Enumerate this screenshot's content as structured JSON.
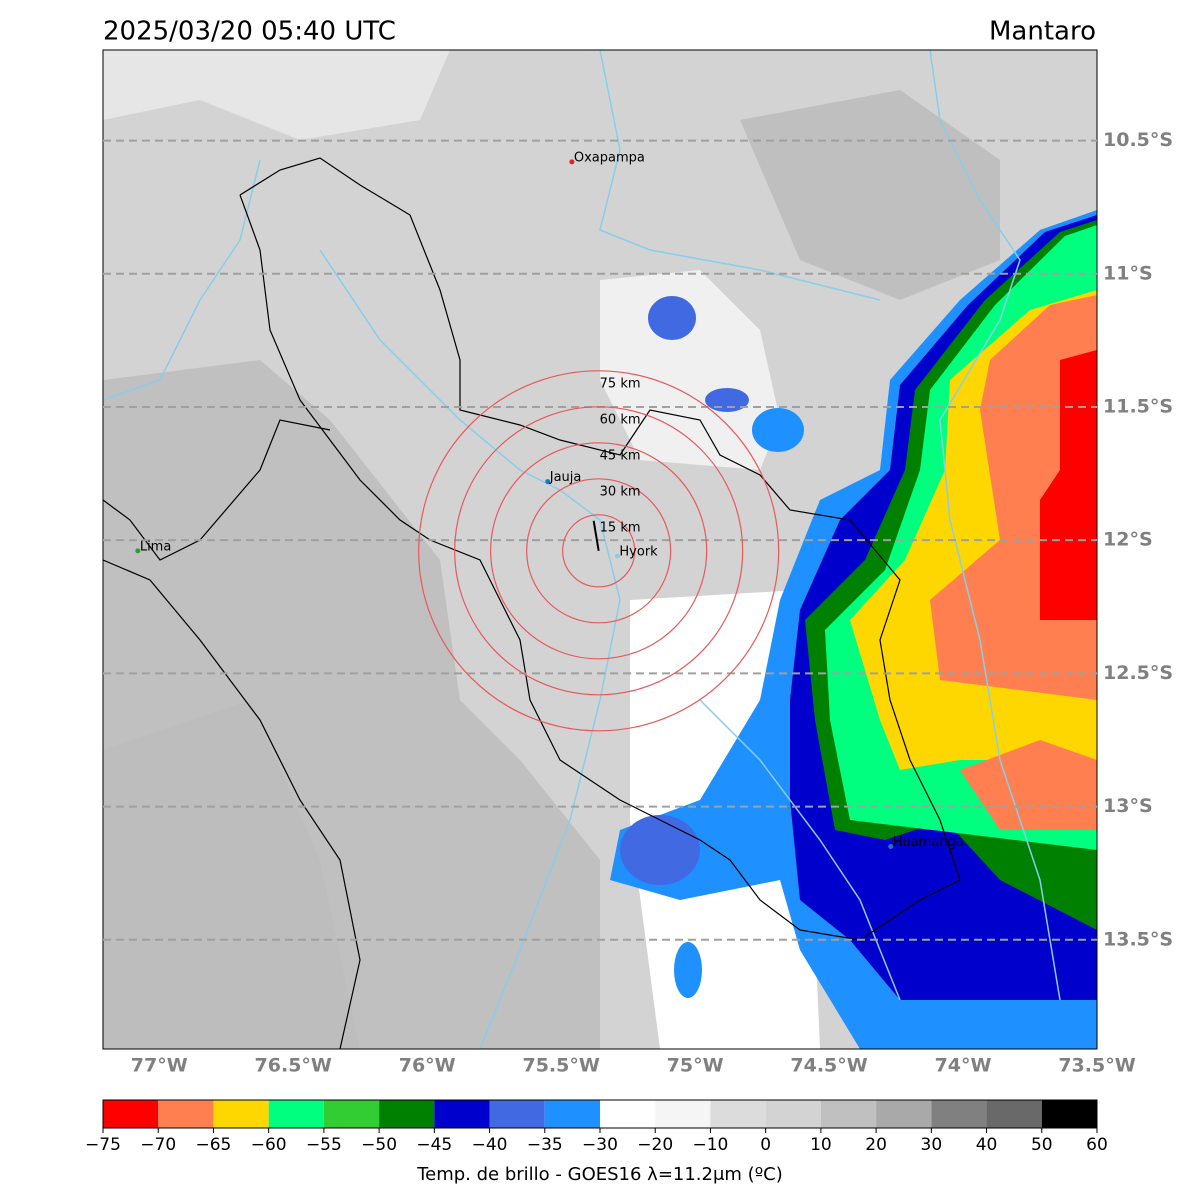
{
  "header": {
    "title": "2025/03/20 05:40 UTC",
    "region": "Mantaro"
  },
  "map": {
    "xlim": [
      -77.21,
      -73.5
    ],
    "ylim": [
      -13.91,
      -10.16
    ],
    "lat_lines": [
      {
        "value": -10.5,
        "label": "10.5°S"
      },
      {
        "value": -11,
        "label": "11°S"
      },
      {
        "value": -11.5,
        "label": "11.5°S"
      },
      {
        "value": -12,
        "label": "12°S"
      },
      {
        "value": -12.5,
        "label": "12.5°S"
      },
      {
        "value": -13,
        "label": "13°S"
      },
      {
        "value": -13.5,
        "label": "13.5°S"
      }
    ],
    "lon_ticks": [
      {
        "value": -77,
        "label": "77°W"
      },
      {
        "value": -76.5,
        "label": "76.5°W"
      },
      {
        "value": -76,
        "label": "76°W"
      },
      {
        "value": -75.5,
        "label": "75.5°W"
      },
      {
        "value": -75,
        "label": "75°W"
      },
      {
        "value": -74.5,
        "label": "74.5°W"
      },
      {
        "value": -74,
        "label": "74°W"
      },
      {
        "value": -73.5,
        "label": "73.5°W"
      }
    ],
    "cities": [
      {
        "name": "Oxapampa",
        "lon": -75.46,
        "lat": -10.58,
        "color": "#d62728"
      },
      {
        "name": "Jauja",
        "lon": -75.55,
        "lat": -11.78,
        "color": "#1f77b4"
      },
      {
        "name": "Lima",
        "lon": -77.08,
        "lat": -12.04,
        "color": "#2ca02c"
      },
      {
        "name": "Hyork",
        "lon": -75.29,
        "lat": -12.06,
        "color": "#87ceeb"
      },
      {
        "name": "Huamanga",
        "lon": -74.27,
        "lat": -13.15,
        "color": "#1f77b4"
      }
    ],
    "rings": {
      "center_lon": -75.36,
      "center_lat": -12.04,
      "color": "#e8585a",
      "radii": [
        {
          "value": 15,
          "label": "15 km"
        },
        {
          "value": 30,
          "label": "30 km"
        },
        {
          "value": 45,
          "label": "45 km"
        },
        {
          "value": 60,
          "label": "60 km"
        },
        {
          "value": 75,
          "label": "75 km"
        }
      ]
    }
  },
  "colorbar": {
    "label": "Temp. de brillo - GOES16 λ=11.2μm (ºC)",
    "ticks": [
      {
        "value": -75,
        "label": "−75"
      },
      {
        "value": -70,
        "label": "−70"
      },
      {
        "value": -65,
        "label": "−65"
      },
      {
        "value": -60,
        "label": "−60"
      },
      {
        "value": -55,
        "label": "−55"
      },
      {
        "value": -50,
        "label": "−50"
      },
      {
        "value": -45,
        "label": "−45"
      },
      {
        "value": -40,
        "label": "−40"
      },
      {
        "value": -35,
        "label": "−35"
      },
      {
        "value": -30,
        "label": "−30"
      },
      {
        "value": -20,
        "label": "−20"
      },
      {
        "value": -10,
        "label": "−10"
      },
      0,
      10,
      20,
      30,
      40,
      50,
      60
    ],
    "colors": [
      "#ff0000",
      "#ff7f50",
      "#ffd700",
      "#00ff7f",
      "#32cd32",
      "#008000",
      "#0000cd",
      "#4169e1",
      "#1e90ff",
      "#ffffff",
      "#f5f5f5",
      "#dcdcdc",
      "#d3d3d3",
      "#c0c0c0",
      "#a9a9a9",
      "#808080",
      "#696969",
      "#000000"
    ]
  }
}
